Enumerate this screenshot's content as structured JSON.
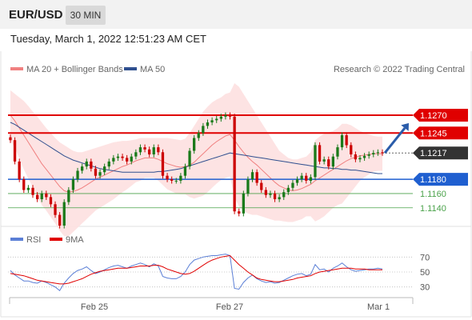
{
  "header": {
    "symbol": "EUR/USD",
    "timeframe": "30 MIN",
    "datetime": "Tuesday, March 1, 2022 12:51:23 AM CET"
  },
  "legend": {
    "ma20": "MA 20 + Bollinger Bands",
    "ma50": "MA 50",
    "credit": "Research © 2022 Trading Central",
    "rsi": "RSI",
    "rsi_ma": "9MA"
  },
  "colors": {
    "ma20": "#f08080",
    "ma50": "#2f4f8f",
    "resistance": "#e00000",
    "support": "#1f5fd0",
    "minor_support": "#4aa24a",
    "current": "#333333",
    "candle_up": "#1a7a1a",
    "candle_down": "#cc0000",
    "band_fill": "#fde0e0",
    "rsi": "#5b7fd6",
    "rsi_ma": "#e00000",
    "arrow": "#2a5caa"
  },
  "chart_data": [
    {
      "type": "candlestick",
      "x_ticks": [
        "Feb 25",
        "Feb 27",
        "Mar 1"
      ],
      "ylim": [
        1.1115,
        1.1315
      ],
      "levels": [
        {
          "value": 1.127,
          "label": "1.1270",
          "kind": "resistance"
        },
        {
          "value": 1.1245,
          "label": "1.1245",
          "kind": "resistance"
        },
        {
          "value": 1.1217,
          "label": "1.1217",
          "kind": "current"
        },
        {
          "value": 1.118,
          "label": "1.1180",
          "kind": "support"
        },
        {
          "value": 1.116,
          "label": "1.1160",
          "kind": "minor_support"
        },
        {
          "value": 1.114,
          "label": "1.1140",
          "kind": "minor_support"
        }
      ],
      "close": [
        1.1235,
        1.1205,
        1.118,
        1.1165,
        1.1168,
        1.1158,
        1.1152,
        1.116,
        1.1155,
        1.1145,
        1.113,
        1.1115,
        1.1148,
        1.1165,
        1.118,
        1.1192,
        1.1198,
        1.1205,
        1.1195,
        1.1185,
        1.119,
        1.1198,
        1.1205,
        1.121,
        1.1212,
        1.121,
        1.1205,
        1.1212,
        1.1218,
        1.1225,
        1.1222,
        1.1215,
        1.1225,
        1.1218,
        1.1185,
        1.118,
        1.1178,
        1.1178,
        1.1185,
        1.1198,
        1.122,
        1.1238,
        1.1245,
        1.1255,
        1.126,
        1.1263,
        1.1265,
        1.1268,
        1.127,
        1.1268,
        1.1135,
        1.1132,
        1.116,
        1.118,
        1.119,
        1.1175,
        1.1165,
        1.1158,
        1.116,
        1.1152,
        1.1155,
        1.1162,
        1.1168,
        1.1175,
        1.118,
        1.1185,
        1.1178,
        1.1183,
        1.1228,
        1.1205,
        1.1208,
        1.1198,
        1.1212,
        1.1225,
        1.1242,
        1.1228,
        1.1215,
        1.1208,
        1.121,
        1.1213,
        1.1215,
        1.1217,
        1.1218,
        1.1217
      ],
      "ma20": [
        1.127,
        1.1262,
        1.1252,
        1.1242,
        1.1232,
        1.1222,
        1.1212,
        1.1202,
        1.1194,
        1.1186,
        1.1178,
        1.117,
        1.1164,
        1.1162,
        1.1163,
        1.1165,
        1.1168,
        1.1172,
        1.1176,
        1.118,
        1.1183,
        1.1186,
        1.1189,
        1.1192,
        1.1195,
        1.1198,
        1.12,
        1.1203,
        1.1206,
        1.1208,
        1.121,
        1.121,
        1.121,
        1.1208,
        1.1205,
        1.1202,
        1.12,
        1.1198,
        1.1197,
        1.1198,
        1.12,
        1.1204,
        1.121,
        1.1216,
        1.1222,
        1.1228,
        1.1233,
        1.1237,
        1.1241,
        1.1243,
        1.1235,
        1.1226,
        1.1218,
        1.1211,
        1.1205,
        1.12,
        1.1194,
        1.1188,
        1.1182,
        1.1176,
        1.1171,
        1.1168,
        1.1165,
        1.1164,
        1.1165,
        1.1167,
        1.117,
        1.1173,
        1.1178,
        1.1182,
        1.1186,
        1.119,
        1.1194,
        1.1198,
        1.1202,
        1.1206,
        1.1209,
        1.1211,
        1.1213,
        1.1214,
        1.1215,
        1.1216,
        1.1216,
        1.1216
      ],
      "ma50": [
        1.126,
        1.1257,
        1.1253,
        1.1249,
        1.1245,
        1.1241,
        1.1237,
        1.1233,
        1.1229,
        1.1225,
        1.1221,
        1.1217,
        1.1213,
        1.121,
        1.1207,
        1.1205,
        1.1203,
        1.1201,
        1.1199,
        1.1197,
        1.1195,
        1.1194,
        1.1193,
        1.1192,
        1.1191,
        1.119,
        1.119,
        1.119,
        1.119,
        1.119,
        1.119,
        1.119,
        1.119,
        1.1191,
        1.1191,
        1.1192,
        1.1193,
        1.1194,
        1.1195,
        1.1197,
        1.1199,
        1.1201,
        1.1203,
        1.1205,
        1.1207,
        1.1209,
        1.1211,
        1.1213,
        1.1215,
        1.1217,
        1.1216,
        1.1215,
        1.1214,
        1.1213,
        1.1212,
        1.1211,
        1.121,
        1.1209,
        1.1208,
        1.1207,
        1.1206,
        1.1205,
        1.1204,
        1.1203,
        1.1202,
        1.1201,
        1.12,
        1.1199,
        1.1198,
        1.1197,
        1.1196,
        1.1196,
        1.1195,
        1.1195,
        1.1194,
        1.1194,
        1.1193,
        1.1193,
        1.1192,
        1.1191,
        1.119,
        1.1189,
        1.1188,
        1.1188
      ],
      "bb_upper": [
        1.1305,
        1.13,
        1.1295,
        1.129,
        1.1283,
        1.1275,
        1.1268,
        1.126,
        1.1252,
        1.1245,
        1.1238,
        1.1232,
        1.1228,
        1.1224,
        1.122,
        1.1218,
        1.1218,
        1.122,
        1.1222,
        1.1224,
        1.1226,
        1.1228,
        1.123,
        1.1232,
        1.1233,
        1.1234,
        1.1234,
        1.1235,
        1.1236,
        1.1238,
        1.1238,
        1.1238,
        1.1238,
        1.1238,
        1.1238,
        1.1238,
        1.1237,
        1.1236,
        1.1235,
        1.1237,
        1.1245,
        1.1255,
        1.1265,
        1.1275,
        1.1282,
        1.1288,
        1.1292,
        1.1295,
        1.13,
        1.1302,
        1.1315,
        1.131,
        1.13,
        1.129,
        1.128,
        1.127,
        1.126,
        1.125,
        1.124,
        1.123,
        1.122,
        1.1215,
        1.121,
        1.1208,
        1.1208,
        1.121,
        1.1212,
        1.1218,
        1.1235,
        1.124,
        1.1244,
        1.1246,
        1.1248,
        1.1252,
        1.1258,
        1.1258,
        1.1256,
        1.1252,
        1.1248,
        1.1245,
        1.1243,
        1.1241,
        1.124,
        1.124
      ],
      "bb_lower": [
        1.1235,
        1.1224,
        1.1209,
        1.1194,
        1.1181,
        1.1169,
        1.1156,
        1.1144,
        1.1136,
        1.1127,
        1.1118,
        1.1108,
        1.11,
        1.11,
        1.1106,
        1.1112,
        1.1118,
        1.1124,
        1.113,
        1.1136,
        1.114,
        1.1144,
        1.1148,
        1.1152,
        1.1157,
        1.1162,
        1.1166,
        1.1171,
        1.1176,
        1.1178,
        1.1182,
        1.1182,
        1.1182,
        1.1178,
        1.1172,
        1.1166,
        1.1163,
        1.116,
        1.1159,
        1.1159,
        1.1155,
        1.1153,
        1.1155,
        1.1157,
        1.1162,
        1.1168,
        1.1174,
        1.1179,
        1.1182,
        1.1184,
        1.1155,
        1.1142,
        1.1136,
        1.1132,
        1.113,
        1.113,
        1.1128,
        1.1126,
        1.1124,
        1.1122,
        1.1122,
        1.1121,
        1.112,
        1.112,
        1.1122,
        1.1124,
        1.1128,
        1.1128,
        1.1121,
        1.1124,
        1.1128,
        1.1134,
        1.114,
        1.1144,
        1.1146,
        1.1154,
        1.1162,
        1.117,
        1.1178,
        1.1183,
        1.1187,
        1.1191,
        1.1192,
        1.1192
      ]
    },
    {
      "type": "line",
      "series_names": [
        "RSI",
        "9MA"
      ],
      "ylim": [
        20,
        80
      ],
      "y_ticks": [
        70,
        50,
        30
      ],
      "rsi": [
        52,
        46,
        42,
        38,
        38,
        36,
        35,
        38,
        36,
        33,
        30,
        25,
        35,
        42,
        48,
        52,
        54,
        57,
        52,
        48,
        50,
        53,
        56,
        58,
        59,
        57,
        55,
        58,
        60,
        62,
        60,
        57,
        61,
        58,
        44,
        42,
        41,
        41,
        44,
        50,
        60,
        66,
        68,
        70,
        71,
        72,
        72,
        73,
        74,
        72,
        28,
        27,
        36,
        42,
        46,
        41,
        38,
        36,
        37,
        35,
        36,
        39,
        42,
        45,
        47,
        48,
        45,
        47,
        60,
        53,
        54,
        50,
        55,
        58,
        62,
        57,
        53,
        51,
        52,
        53,
        54,
        54,
        55,
        54
      ],
      "rsi_ma": [
        48,
        47,
        46,
        45,
        43,
        41,
        39,
        38,
        37,
        36,
        35,
        34,
        34,
        35,
        37,
        39,
        41,
        44,
        47,
        49,
        51,
        52,
        53,
        54,
        55,
        55,
        55,
        56,
        57,
        58,
        58,
        58,
        59,
        59,
        57,
        54,
        52,
        50,
        48,
        47,
        48,
        51,
        55,
        59,
        63,
        66,
        68,
        70,
        71,
        72,
        66,
        60,
        55,
        50,
        46,
        42,
        40,
        39,
        38,
        37,
        37,
        38,
        39,
        40,
        42,
        43,
        44,
        45,
        48,
        50,
        51,
        52,
        53,
        54,
        55,
        55,
        55,
        54,
        54,
        54,
        53,
        53,
        53,
        53
      ]
    }
  ]
}
